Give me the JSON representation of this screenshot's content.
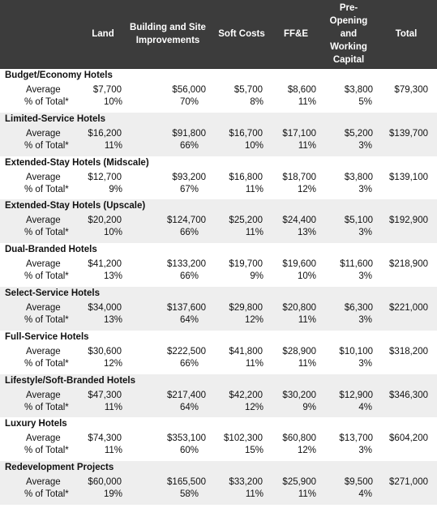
{
  "headers": {
    "land": "Land",
    "building": "Building and Site Improvements",
    "soft": "Soft Costs",
    "ffe": "FF&E",
    "preopen": "Pre-Opening and Working Capital",
    "total": "Total"
  },
  "row_labels": {
    "average": "Average",
    "pct": "% of Total*"
  },
  "sections": [
    {
      "title": "Budget/Economy Hotels",
      "avg": [
        "$7,700",
        "$56,000",
        "$5,700",
        "$8,600",
        "$3,800",
        "$79,300"
      ],
      "pct": [
        "10%",
        "70%",
        "8%",
        "11%",
        "5%"
      ]
    },
    {
      "title": "Limited-Service Hotels",
      "avg": [
        "$16,200",
        "$91,800",
        "$16,700",
        "$17,100",
        "$5,200",
        "$139,700"
      ],
      "pct": [
        "11%",
        "66%",
        "10%",
        "11%",
        "3%"
      ]
    },
    {
      "title": "Extended-Stay Hotels (Midscale)",
      "avg": [
        "$12,700",
        "$93,200",
        "$16,800",
        "$18,700",
        "$3,800",
        "$139,100"
      ],
      "pct": [
        "9%",
        "67%",
        "11%",
        "12%",
        "3%"
      ]
    },
    {
      "title": "Extended-Stay Hotels (Upscale)",
      "avg": [
        "$20,200",
        "$124,700",
        "$25,200",
        "$24,400",
        "$5,100",
        "$192,900"
      ],
      "pct": [
        "10%",
        "66%",
        "11%",
        "13%",
        "3%"
      ]
    },
    {
      "title": "Dual-Branded Hotels",
      "avg": [
        "$41,200",
        "$133,200",
        "$19,700",
        "$19,600",
        "$11,600",
        "$218,900"
      ],
      "pct": [
        "13%",
        "66%",
        "9%",
        "10%",
        "3%"
      ]
    },
    {
      "title": "Select-Service Hotels",
      "avg": [
        "$34,000",
        "$137,600",
        "$29,800",
        "$20,800",
        "$6,300",
        "$221,000"
      ],
      "pct": [
        "13%",
        "64%",
        "12%",
        "11%",
        "3%"
      ]
    },
    {
      "title": "Full-Service Hotels",
      "avg": [
        "$30,600",
        "$222,500",
        "$41,800",
        "$28,900",
        "$10,100",
        "$318,200"
      ],
      "pct": [
        "12%",
        "66%",
        "11%",
        "11%",
        "3%"
      ]
    },
    {
      "title": "Lifestyle/Soft-Branded Hotels",
      "avg": [
        "$47,300",
        "$217,400",
        "$42,200",
        "$30,200",
        "$12,900",
        "$346,300"
      ],
      "pct": [
        "11%",
        "64%",
        "12%",
        "9%",
        "4%"
      ]
    },
    {
      "title": "Luxury Hotels",
      "avg": [
        "$74,300",
        "$353,100",
        "$102,300",
        "$60,800",
        "$13,700",
        "$604,200"
      ],
      "pct": [
        "11%",
        "60%",
        "15%",
        "12%",
        "3%"
      ]
    },
    {
      "title": "Redevelopment Projects",
      "avg": [
        "$60,000",
        "$165,500",
        "$33,200",
        "$25,900",
        "$9,500",
        "$271,000"
      ],
      "pct": [
        "19%",
        "58%",
        "11%",
        "11%",
        "4%"
      ]
    }
  ],
  "colors": {
    "header_bg": "#3c3c3c",
    "header_text": "#ffffff",
    "shade": "#eeeeee"
  }
}
